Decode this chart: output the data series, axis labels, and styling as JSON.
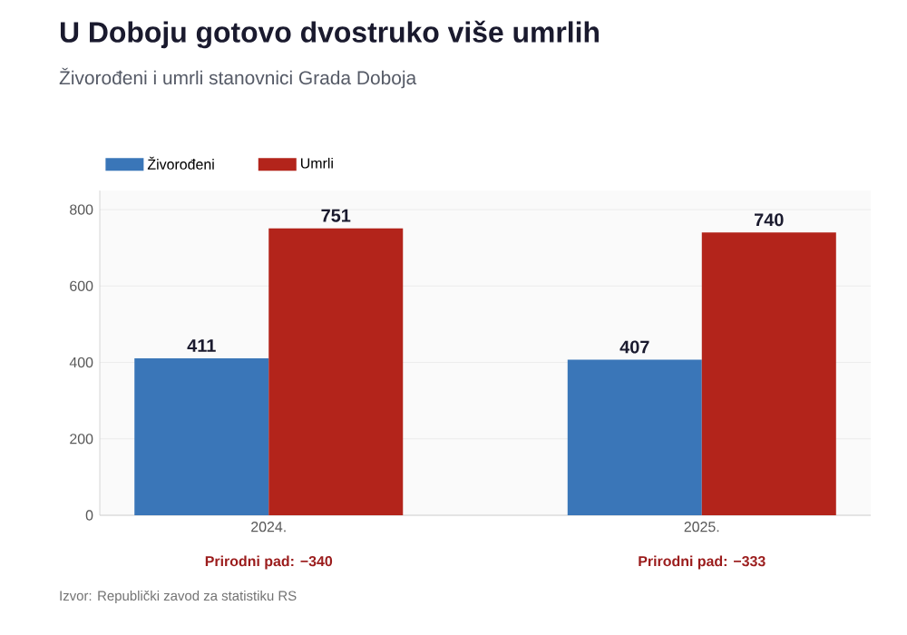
{
  "chart_data": {
    "type": "bar",
    "title": "U Doboju gotovo dvostruko više umrlih",
    "subtitle": "Živorođeni i umrli stanovnici Grada Doboja",
    "categories": [
      "2024.",
      "2025."
    ],
    "series": [
      {
        "name": "Živorođeni",
        "color": "#3a76b8",
        "values": [
          411,
          407
        ]
      },
      {
        "name": "Umrli",
        "color": "#b3241b",
        "values": [
          751,
          740
        ]
      }
    ],
    "ylim": [
      0,
      850
    ],
    "yticks": [
      0,
      200,
      400,
      600,
      800
    ],
    "grid": "y",
    "legend": "top left",
    "data_labels": true,
    "annotations": [
      "Prirodni pad: −340",
      "Prirodni pad: −333",
      "Izvor: Republički zavod za statistiku RS"
    ]
  }
}
